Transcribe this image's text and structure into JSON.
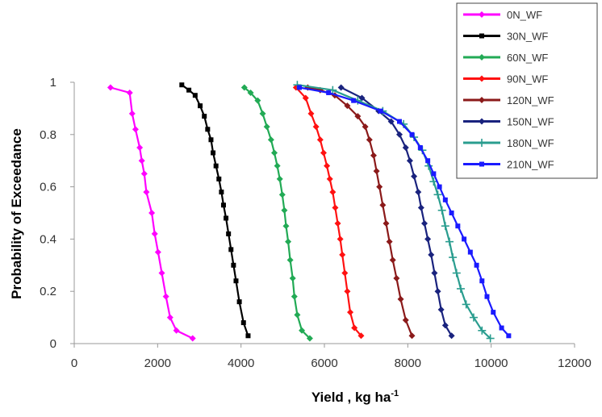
{
  "chart_data": {
    "type": "line",
    "title": "",
    "xlabel": "Yield , kg ha",
    "xlabel_superscript": "-1",
    "ylabel": "Probability of Exceedance",
    "xlim": [
      0,
      12000
    ],
    "ylim": [
      0,
      1
    ],
    "x_ticks": [
      "0",
      "2000",
      "4000",
      "6000",
      "8000",
      "10000",
      "12000"
    ],
    "y_ticks": [
      "0",
      "0.2",
      "0.4",
      "0.6",
      "0.8",
      "1"
    ],
    "grid": false,
    "legend_position": "top-right",
    "series": [
      {
        "name": "0N_WF",
        "color": "#ff00ff",
        "marker": "diamond",
        "x": [
          870,
          1330,
          1390,
          1470,
          1570,
          1620,
          1680,
          1730,
          1860,
          1930,
          2010,
          2100,
          2200,
          2300,
          2450,
          2840
        ],
        "y": [
          0.98,
          0.96,
          0.88,
          0.82,
          0.75,
          0.7,
          0.65,
          0.58,
          0.5,
          0.42,
          0.35,
          0.27,
          0.18,
          0.1,
          0.05,
          0.02
        ]
      },
      {
        "name": "30N_WF",
        "color": "#000000",
        "marker": "square",
        "x": [
          2580,
          2750,
          2900,
          3020,
          3120,
          3200,
          3280,
          3330,
          3400,
          3470,
          3530,
          3580,
          3640,
          3700,
          3760,
          3820,
          3880,
          3960,
          4060,
          4170
        ],
        "y": [
          0.99,
          0.97,
          0.95,
          0.91,
          0.87,
          0.82,
          0.78,
          0.73,
          0.68,
          0.63,
          0.58,
          0.53,
          0.48,
          0.42,
          0.36,
          0.3,
          0.24,
          0.16,
          0.08,
          0.03
        ]
      },
      {
        "name": "60N_WF",
        "color": "#22aa55",
        "marker": "diamond",
        "x": [
          4080,
          4230,
          4400,
          4520,
          4620,
          4720,
          4800,
          4870,
          4930,
          4990,
          5040,
          5080,
          5130,
          5180,
          5240,
          5280,
          5350,
          5460,
          5650
        ],
        "y": [
          0.98,
          0.96,
          0.93,
          0.88,
          0.83,
          0.78,
          0.73,
          0.68,
          0.63,
          0.57,
          0.51,
          0.45,
          0.39,
          0.32,
          0.25,
          0.18,
          0.11,
          0.05,
          0.02
        ]
      },
      {
        "name": "90N_WF",
        "color": "#ff1111",
        "marker": "diamond",
        "x": [
          5320,
          5550,
          5680,
          5800,
          5900,
          5980,
          6060,
          6130,
          6200,
          6260,
          6320,
          6380,
          6430,
          6490,
          6550,
          6620,
          6720,
          6880
        ],
        "y": [
          0.98,
          0.94,
          0.88,
          0.83,
          0.78,
          0.73,
          0.68,
          0.63,
          0.58,
          0.52,
          0.46,
          0.4,
          0.34,
          0.27,
          0.2,
          0.12,
          0.06,
          0.03
        ]
      },
      {
        "name": "120N_WF",
        "color": "#8b1a1a",
        "marker": "diamond",
        "x": [
          5600,
          5900,
          6250,
          6550,
          6800,
          6980,
          7080,
          7180,
          7250,
          7320,
          7400,
          7480,
          7560,
          7640,
          7730,
          7830,
          7950,
          8100
        ],
        "y": [
          0.98,
          0.97,
          0.95,
          0.91,
          0.87,
          0.83,
          0.78,
          0.72,
          0.66,
          0.6,
          0.53,
          0.46,
          0.39,
          0.32,
          0.25,
          0.17,
          0.09,
          0.03
        ]
      },
      {
        "name": "150N_WF",
        "color": "#1a237e",
        "marker": "diamond",
        "x": [
          6400,
          6900,
          7300,
          7600,
          7800,
          7950,
          8050,
          8150,
          8250,
          8320,
          8400,
          8480,
          8560,
          8640,
          8720,
          8800,
          8900,
          9050
        ],
        "y": [
          0.98,
          0.94,
          0.89,
          0.85,
          0.8,
          0.75,
          0.7,
          0.64,
          0.58,
          0.52,
          0.46,
          0.4,
          0.34,
          0.27,
          0.2,
          0.13,
          0.07,
          0.03
        ]
      },
      {
        "name": "180N_WF",
        "color": "#2a9d8f",
        "marker": "plus",
        "x": [
          5350,
          6200,
          6800,
          7400,
          7900,
          8150,
          8350,
          8500,
          8620,
          8720,
          8820,
          8900,
          9000,
          9080,
          9170,
          9270,
          9400,
          9580,
          9780,
          9980
        ],
        "y": [
          0.99,
          0.97,
          0.93,
          0.89,
          0.84,
          0.79,
          0.74,
          0.68,
          0.62,
          0.57,
          0.51,
          0.45,
          0.39,
          0.33,
          0.27,
          0.21,
          0.15,
          0.1,
          0.05,
          0.02
        ]
      },
      {
        "name": "210N_WF",
        "color": "#1a1aff",
        "marker": "square",
        "x": [
          5400,
          6100,
          6700,
          7350,
          7800,
          8100,
          8300,
          8480,
          8620,
          8760,
          8900,
          9050,
          9200,
          9350,
          9500,
          9650,
          9780,
          9900,
          10050,
          10250,
          10420
        ],
        "y": [
          0.98,
          0.96,
          0.93,
          0.89,
          0.85,
          0.8,
          0.75,
          0.7,
          0.65,
          0.6,
          0.55,
          0.5,
          0.45,
          0.4,
          0.35,
          0.3,
          0.24,
          0.18,
          0.12,
          0.06,
          0.03
        ]
      }
    ]
  }
}
